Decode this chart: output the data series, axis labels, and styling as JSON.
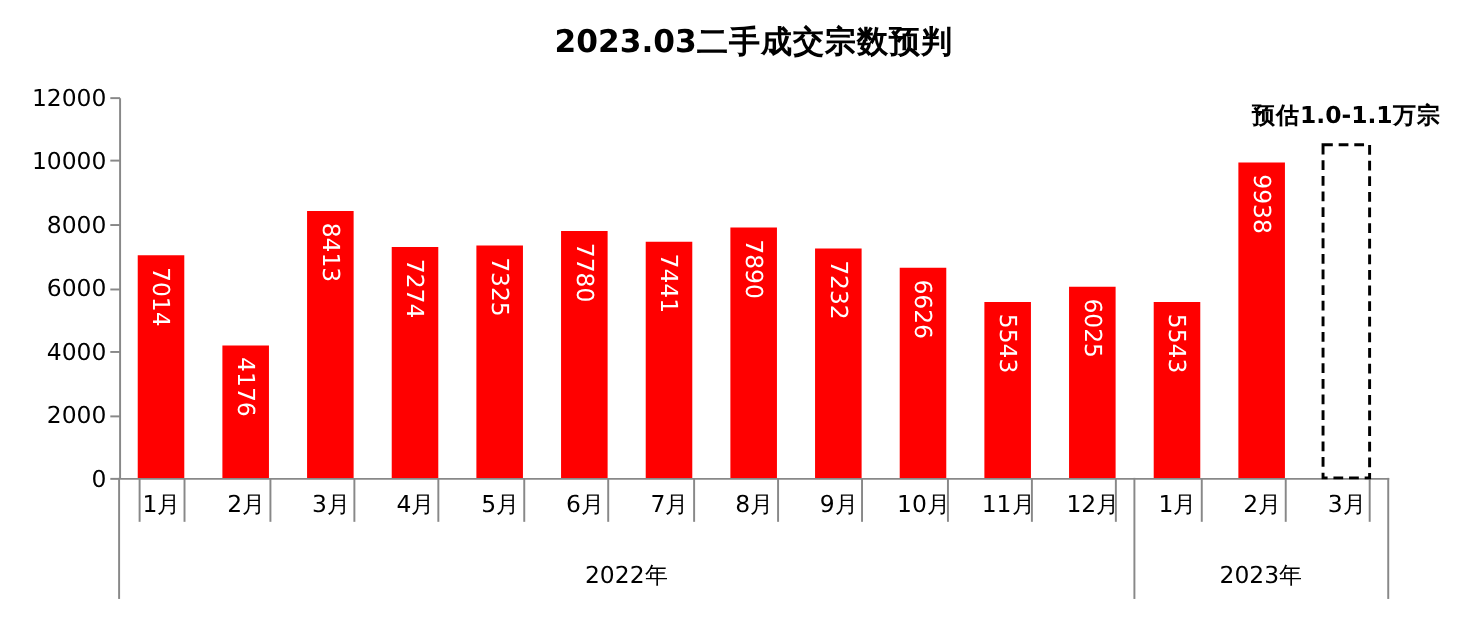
{
  "chart_data": {
    "type": "bar",
    "title": "2023.03二手成交宗数预判",
    "categories": [
      "1月",
      "2月",
      "3月",
      "4月",
      "5月",
      "6月",
      "7月",
      "8月",
      "9月",
      "10月",
      "11月",
      "12月",
      "1月",
      "2月",
      "3月"
    ],
    "series": [
      {
        "color": "#ff0000",
        "values": [
          7014,
          4176,
          8413,
          7274,
          7325,
          7780,
          7441,
          7890,
          7232,
          6626,
          5543,
          6025,
          5543,
          9938,
          null
        ],
        "value_labels": [
          "7014",
          "4176",
          "8413",
          "7274",
          "7325",
          "7780",
          "7441",
          "7890",
          "7232",
          "6626",
          "5543",
          "6025",
          "5543",
          "9938",
          null
        ]
      },
      {
        "type": "bar",
        "color": "#000000",
        "line_style": "dashed",
        "values": [
          null,
          null,
          null,
          null,
          null,
          null,
          null,
          null,
          null,
          null,
          null,
          null,
          null,
          null,
          10500
        ]
      }
    ],
    "ylim": [
      0,
      12000
    ],
    "yticks": [
      0,
      2000,
      4000,
      6000,
      8000,
      10000,
      12000
    ],
    "grid": false,
    "annotations": [
      "预估1.0-1.1万宗",
      "2022年",
      "2023年"
    ]
  }
}
